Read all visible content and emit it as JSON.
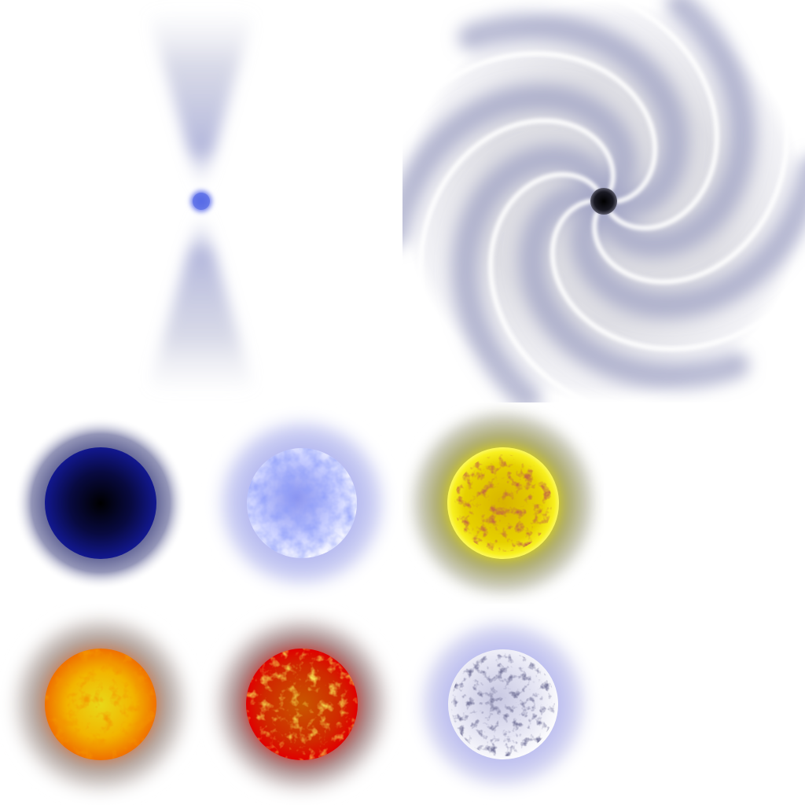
{
  "sheet": {
    "background": "#ffffff",
    "sprites": [
      {
        "id": "pulsar",
        "kind": "pulsar-with-jets",
        "core_color": "#5a6ee0",
        "jet_color": "#9ea4cc"
      },
      {
        "id": "vortex",
        "kind": "black-hole-accretion-swirl",
        "core_color": "#101018",
        "swirl_color": "#a0a3c4",
        "arms": 6
      },
      {
        "id": "star-dark-blue",
        "kind": "star",
        "core": "#0b0e5a",
        "rim": "#0c1070",
        "halo": "#7c7ea8"
      },
      {
        "id": "star-blue",
        "kind": "star",
        "core": "#dfe4ff",
        "rim": "#4a58e6",
        "halo": "#bfc3f0"
      },
      {
        "id": "star-yellow",
        "kind": "star",
        "core": "#e8c800",
        "rim": "#f4ee18",
        "halo": "#b8b780"
      },
      {
        "id": "star-orange",
        "kind": "star",
        "core": "#f0d010",
        "rim": "#f07800",
        "halo": "#b59a90"
      },
      {
        "id": "star-red",
        "kind": "star",
        "core": "#d83a00",
        "rim": "#c40000",
        "halo": "#b08080"
      },
      {
        "id": "star-white",
        "kind": "star",
        "core": "#f2f2fa",
        "rim": "#c9c9e6",
        "halo": "#c8c9ee"
      }
    ]
  }
}
